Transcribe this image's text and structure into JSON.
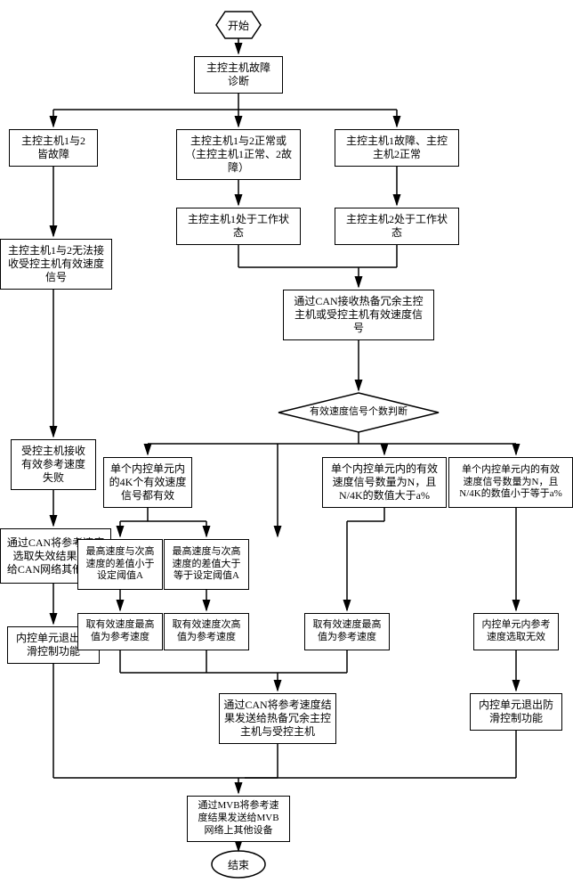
{
  "fs": 12,
  "stroke": "#000000",
  "bg": "#ffffff",
  "start": "开始",
  "end": "结束",
  "n_diag": "主控主机故障\n诊断",
  "n_bothFail": "主控主机1与2\n皆故障",
  "n_normal": "主控主机1与2正常或\n（主控主机1正常、2故\n障）",
  "n_1fail2normal": "主控主机1故障、主控\n主机2正常",
  "n_host1work": "主控主机1处于工作状\n态",
  "n_host2work": "主控主机2处于工作状\n态",
  "n_noRecv": "主控主机1与2无法接\n收受控主机有效速度\n信号",
  "n_canRecv": "通过CAN接收热备冗余主控\n主机或受控主机有效速度信\n号",
  "n_decision": "有效速度信号个数判断",
  "n_recvFail": "受控主机接收\n有效参考速度\n失败",
  "n_sendFail": "通过CAN将参考速度\n选取失效结果发送\n给CAN网络其他设备",
  "n_exit1": "内控单元退出防\n滑控制功能",
  "n_4kvalid": "单个内控单元内\n的4K个有效速度\n信号都有效",
  "n_Ngta": "单个内控单元内的有效\n速度信号数量为N，且\nN/4K的数值大于a%",
  "n_Nlea": "单个内控单元内的有效\n速度信号数量为N，且\nN/4K的数值小于等于a%",
  "n_diffLt": "最高速度与次高\n速度的差值小于\n设定阈值A",
  "n_diffGe": "最高速度与次高\n速度的差值大于\n等于设定阈值A",
  "n_takeMax1": "取有效速度最高\n值为参考速度",
  "n_take2nd": "取有效速度次高\n值为参考速度",
  "n_takeMax2": "取有效速度最高\n值为参考速度",
  "n_invalid": "内控单元内参考\n速度选取无效",
  "n_sendCan": "通过CAN将参考速度结\n果发送给热备冗余主控\n主机与受控主机",
  "n_exit2": "内控单元退出防\n滑控制功能",
  "n_sendMvb": "通过MVB将参考速\n度结果发送给MVB\n网络上其他设备"
}
